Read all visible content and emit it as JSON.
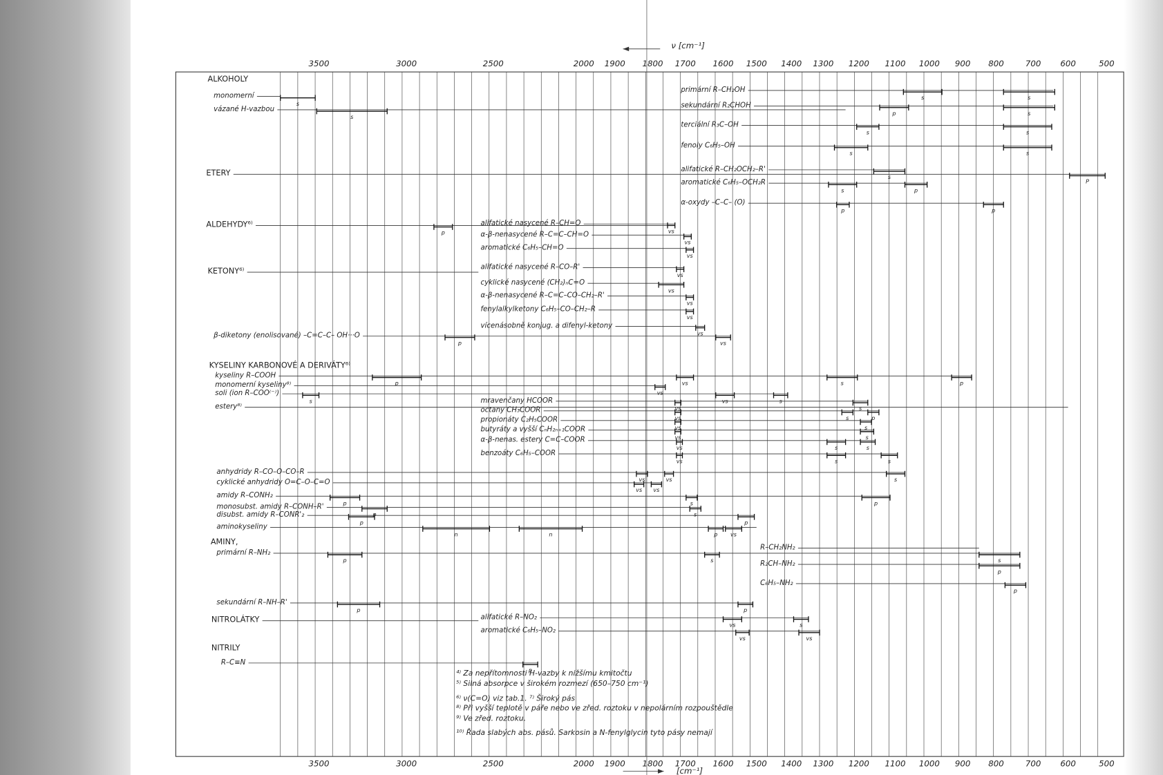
{
  "axis": {
    "title_top": "ν [cm⁻¹]",
    "title_bottom": "[cm⁻¹]",
    "ticks": [
      "3500",
      "3000",
      "2500",
      "2000",
      "1900",
      "1800",
      "1700",
      "1600",
      "1500",
      "1400",
      "1300",
      "1200",
      "1100",
      "1000",
      "900",
      "800",
      "700",
      "600",
      "500"
    ]
  },
  "rows": [
    {
      "label": "ALKOHOLY",
      "bands": []
    },
    {
      "label": "monomerní",
      "bands": [
        "s"
      ]
    },
    {
      "label": "vázané H-vazbou",
      "bands": [
        "s"
      ]
    },
    {
      "label": "primární R–CH₂OH",
      "bands": [
        "s",
        "s"
      ]
    },
    {
      "label": "sekundární R₂CHOH",
      "bands": [
        "p",
        "s"
      ]
    },
    {
      "label": "terciální R₃C–OH",
      "bands": [
        "s",
        "s"
      ]
    },
    {
      "label": "fenoly C₆H₅–OH",
      "bands": [
        "s",
        "s"
      ]
    },
    {
      "label": "ETERY",
      "bands": [
        "P"
      ]
    },
    {
      "label": "alifatické R–CH₂OCH₂–R'",
      "bands": [
        "s"
      ]
    },
    {
      "label": "aromatické C₆H₅–OCH₂R",
      "bands": [
        "s",
        "p"
      ]
    },
    {
      "label": "α-oxydy –C–C– (O)",
      "bands": [
        "p",
        "p"
      ]
    },
    {
      "label": "ALDEHYDY⁶⁾",
      "bands": [
        "p"
      ]
    },
    {
      "label": "alifatické nasycené R–CH=O",
      "bands": [
        "vs"
      ]
    },
    {
      "label": "α-β-nenasycené R–C=C–CH=O",
      "bands": [
        "vs"
      ]
    },
    {
      "label": "aromatické C₆H₅–CH=O",
      "bands": [
        "vs"
      ]
    },
    {
      "label": "KETONY⁶⁾",
      "bands": []
    },
    {
      "label": "alifatické nasycené R–CO–R'",
      "bands": [
        "vs"
      ]
    },
    {
      "label": "cyklické nasycené (CH₂)ₙC=O",
      "bands": [
        "vs"
      ]
    },
    {
      "label": "α-β-nenasycené R–C=C–CO–CH₂–R'",
      "bands": [
        "vs"
      ]
    },
    {
      "label": "fenylalkylketony C₆H₅–CO–CH₂–R",
      "bands": [
        "vs"
      ]
    },
    {
      "label": "vícenásobně konjug. a difenyl-ketony",
      "bands": [
        "vs"
      ]
    },
    {
      "label": "β-diketony (enolisované) –C=C–C– OH···O",
      "bands": [
        "p",
        "vs"
      ]
    },
    {
      "label": "KYSELINY KARBONOVÉ A DERIVÁTY⁶⁾",
      "bands": []
    },
    {
      "label": "kyseliny R–COOH",
      "bands": [
        "p",
        "vs",
        "s",
        "p"
      ]
    },
    {
      "label": "monomerní kyseliny⁸⁾",
      "bands": [
        "vs"
      ]
    },
    {
      "label": "soli (ion R–COO⁽⁻⁾)",
      "bands": [
        "s",
        "vs",
        "s"
      ]
    },
    {
      "label": "estery⁸⁾",
      "bands": []
    },
    {
      "label": "mravenčany HCOOR",
      "bands": [
        "vs",
        "s"
      ]
    },
    {
      "label": "octany CH₃COOR",
      "bands": [
        "vs",
        "s",
        "p"
      ]
    },
    {
      "label": "propionáty C₂H₅COOR",
      "bands": [
        "vs",
        "s"
      ]
    },
    {
      "label": "butyráty a vyšší CₙH₂ₙ₊₁COOR",
      "bands": [
        "vs",
        "s"
      ]
    },
    {
      "label": "α-β-nenas. estery C=C–COOR",
      "bands": [
        "vs",
        "s",
        "s"
      ]
    },
    {
      "label": "benzoáty C₆H₅–COOR",
      "bands": [
        "vs",
        "s",
        "s"
      ]
    },
    {
      "label": "anhydridy R–CO–O–CO–R",
      "bands": [
        "vs",
        "vs",
        "s"
      ]
    },
    {
      "label": "cyklické anhydridy O=C–O–C=O",
      "bands": [
        "vs",
        "vs"
      ]
    },
    {
      "label": "amidy R–CONH₂",
      "bands": [
        "p",
        "s",
        "p"
      ]
    },
    {
      "label": "monosubst. amidy R–CONH–R'",
      "bands": [
        "p",
        "s"
      ]
    },
    {
      "label": "disubst. amidy R–CONR'₂",
      "bands": [
        "p",
        "p"
      ]
    },
    {
      "label": "aminokyseliny",
      "bands": [
        "n",
        "n",
        "p",
        "vs"
      ]
    },
    {
      "label": "AMINY,",
      "bands": []
    },
    {
      "label": "primární R–NH₂",
      "bands": [
        "p",
        "s",
        "s"
      ]
    },
    {
      "label": "R–CH₂NH₂",
      "bands": []
    },
    {
      "label": "R₂CH–NH₂",
      "bands": [
        "p"
      ]
    },
    {
      "label": "C₆H₅–NH₂",
      "bands": [
        "p"
      ]
    },
    {
      "label": "sekundární R–NH–R'",
      "bands": [
        "p",
        "p"
      ]
    },
    {
      "label": "NITROLÁTKY",
      "bands": []
    },
    {
      "label": "alifatické R–NO₂",
      "bands": [
        "vs",
        "s"
      ]
    },
    {
      "label": "aromatické C₆H₅–NO₂",
      "bands": [
        "vs",
        "vs"
      ]
    },
    {
      "label": "NITRILY",
      "bands": []
    },
    {
      "label": "R–C≡N",
      "bands": [
        "p"
      ]
    }
  ],
  "footnotes": [
    "⁴⁾ Za nepřítomnosti H-vazby k nižšímu kmitočtu",
    "⁵⁾ Silná absorpce v širokém rozmezí (650–750 cm⁻¹)",
    "⁶⁾ ν(C=O) viz tab.1.    ⁷⁾ Široký pás",
    "⁸⁾ Při vyšší teplotě v páře nebo ve zřed. roztoku v nepolárním rozpouštědle",
    "⁹⁾ Ve zřed. roztoku.",
    "¹⁰⁾ Řada slabých abs. pásů. Sarkosin a N-fenylglycin tyto pásy nemají"
  ]
}
